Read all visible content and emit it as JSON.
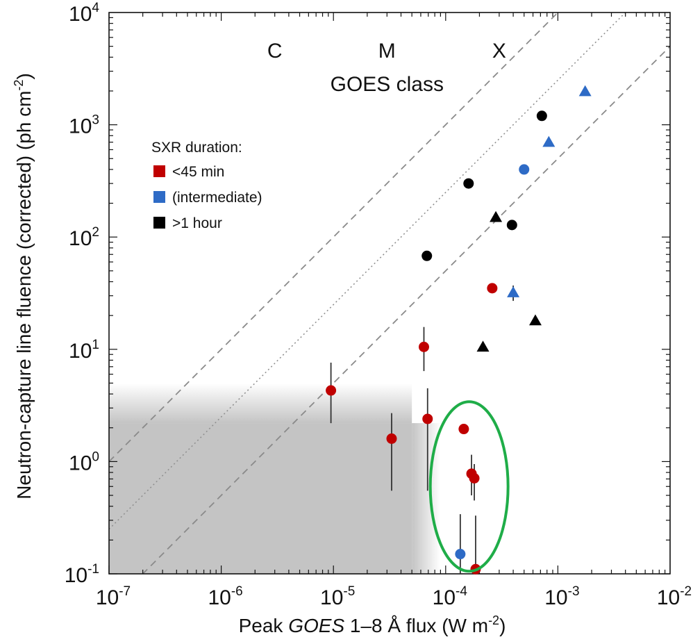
{
  "chart_data": {
    "type": "scatter",
    "x_axis": {
      "scale": "log",
      "range": [
        1e-07,
        0.01
      ],
      "ticks": [
        {
          "value": 1e-07,
          "base": "10",
          "exp": "-7"
        },
        {
          "value": 1e-06,
          "base": "10",
          "exp": "-6"
        },
        {
          "value": 1e-05,
          "base": "10",
          "exp": "-5"
        },
        {
          "value": 0.0001,
          "base": "10",
          "exp": "-4"
        },
        {
          "value": 0.001,
          "base": "10",
          "exp": "-3"
        },
        {
          "value": 0.01,
          "base": "10",
          "exp": "-2"
        }
      ],
      "label_pre": "Peak ",
      "label_italic": "GOES",
      "label_mid": " 1–8 Å flux (W m",
      "label_sup": "-2",
      "label_post": ")"
    },
    "y_axis": {
      "scale": "log",
      "range": [
        0.1,
        10000
      ],
      "ticks": [
        {
          "value": 0.1,
          "base": "10",
          "exp": "-1"
        },
        {
          "value": 1,
          "base": "10",
          "exp": "0"
        },
        {
          "value": 10,
          "base": "10",
          "exp": "1"
        },
        {
          "value": 100,
          "base": "10",
          "exp": "2"
        },
        {
          "value": 1000,
          "base": "10",
          "exp": "3"
        },
        {
          "value": 10000,
          "base": "10",
          "exp": "4"
        }
      ],
      "label_main": "Neutron-capture line fluence (corrected)  (ph cm",
      "label_sup": "-2",
      "label_post": ")"
    },
    "goes_class": {
      "title": "GOES class",
      "labels": [
        {
          "text": "C",
          "x": 3e-06
        },
        {
          "text": "M",
          "x": 3e-05
        },
        {
          "text": "X",
          "x": 0.0003
        }
      ]
    },
    "legend": {
      "title": "SXR duration:",
      "placement": "upper-left",
      "items": [
        {
          "label": "<45 min",
          "color": "#c00000"
        },
        {
          "label": "(intermediate)",
          "color": "#2e6bc6"
        },
        {
          "label": ">1 hour",
          "color": "#000000"
        }
      ]
    },
    "shaded_region": {
      "x_max": 5e-05,
      "y_max": 5,
      "color": "#c4c4c4",
      "fade_x_end": 9e-05,
      "fade_y_end": 2.2
    },
    "reference_lines": [
      {
        "style": "dashed",
        "ratio": 10000000.0
      },
      {
        "style": "dotted",
        "ratio": 2500000.0
      },
      {
        "style": "dashed",
        "ratio": 500000.0
      }
    ],
    "series": [
      {
        "category": "<45 min",
        "color": "#c00000",
        "points": [
          {
            "x": 9.5e-06,
            "y": 4.3,
            "ylo": 2.2,
            "yhi": 7.6,
            "marker": "circle"
          },
          {
            "x": 3.3e-05,
            "y": 1.6,
            "ylo": 0.55,
            "yhi": 2.7,
            "marker": "circle"
          },
          {
            "x": 6.4e-05,
            "y": 10.5,
            "ylo": 6.4,
            "yhi": 15.8,
            "marker": "circle"
          },
          {
            "x": 6.9e-05,
            "y": 2.4,
            "ylo": 0.55,
            "yhi": 4.5,
            "marker": "circle"
          },
          {
            "x": 0.000145,
            "y": 1.95,
            "marker": "circle"
          },
          {
            "x": 0.00017,
            "y": 0.78,
            "ylo": 0.5,
            "yhi": 1.15,
            "marker": "circle"
          },
          {
            "x": 0.00018,
            "y": 0.71,
            "ylo": 0.45,
            "yhi": 0.95,
            "marker": "circle"
          },
          {
            "x": 0.000185,
            "y": 0.11,
            "ylo": 0.1,
            "yhi": 0.33,
            "marker": "circle"
          },
          {
            "x": 0.00026,
            "y": 35,
            "marker": "circle"
          }
        ]
      },
      {
        "category": "(intermediate)",
        "color": "#2e6bc6",
        "points": [
          {
            "x": 0.000135,
            "y": 0.15,
            "ylo": 0.1,
            "yhi": 0.34,
            "marker": "circle"
          },
          {
            "x": 0.0004,
            "y": 32,
            "ylo": 27,
            "yhi": 37,
            "marker": "triangle"
          },
          {
            "x": 0.0005,
            "y": 400,
            "marker": "circle"
          },
          {
            "x": 0.00083,
            "y": 700,
            "marker": "triangle"
          },
          {
            "x": 0.00175,
            "y": 1980,
            "marker": "triangle"
          }
        ]
      },
      {
        "category": ">1 hour",
        "color": "#000000",
        "points": [
          {
            "x": 6.8e-05,
            "y": 68,
            "marker": "circle"
          },
          {
            "x": 0.00016,
            "y": 300,
            "marker": "circle"
          },
          {
            "x": 0.000215,
            "y": 10.5,
            "marker": "triangle"
          },
          {
            "x": 0.00028,
            "y": 150,
            "marker": "triangle"
          },
          {
            "x": 0.00039,
            "y": 128,
            "marker": "circle"
          },
          {
            "x": 0.00063,
            "y": 18,
            "marker": "triangle"
          },
          {
            "x": 0.00072,
            "y": 1200,
            "marker": "circle"
          }
        ]
      }
    ],
    "highlight_ellipse": {
      "cx": 0.000162,
      "cy": 0.6,
      "color": "#1fad48"
    }
  }
}
